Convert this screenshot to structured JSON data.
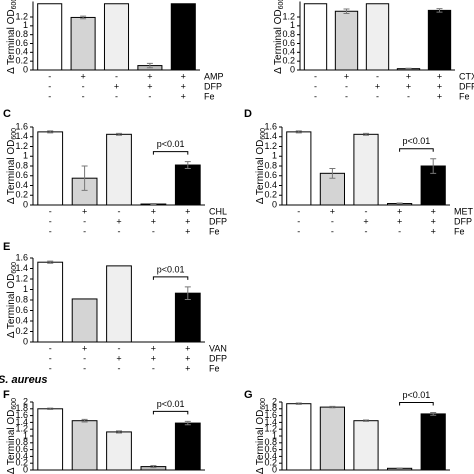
{
  "chart_data": [
    {
      "type": "bar",
      "ylabel": "Δ Terminal OD",
      "ylabel_sub": "600",
      "ylim": [
        0,
        1.55
      ],
      "yticks": [
        0,
        0.2,
        0.4,
        0.6,
        0.8,
        1,
        1.2
      ],
      "values": [
        1.5,
        1.19,
        1.5,
        0.1,
        1.5
      ],
      "errors": [
        0,
        0.03,
        0,
        0.05,
        0
      ],
      "colors": [
        "#ffffff",
        "#d4d4d4",
        "#efefef",
        "#bdbdbd",
        "#000000"
      ],
      "conditions": [
        {
          "name": "AMP",
          "signs": [
            "-",
            "+",
            "-",
            "+",
            "+"
          ]
        },
        {
          "name": "DFP",
          "signs": [
            "-",
            "-",
            "+",
            "+",
            "+"
          ]
        },
        {
          "name": "Fe",
          "signs": [
            "-",
            "-",
            "-",
            "-",
            "+"
          ]
        }
      ]
    },
    {
      "type": "bar",
      "ylabel": "Δ Terminal OD",
      "ylabel_sub": "600",
      "ylim": [
        0,
        1.55
      ],
      "yticks": [
        0,
        0.2,
        0.4,
        0.6,
        0.8,
        1,
        1.2
      ],
      "values": [
        1.5,
        1.33,
        1.5,
        0.03,
        1.35
      ],
      "errors": [
        0,
        0.05,
        0,
        0.01,
        0.04
      ],
      "colors": [
        "#ffffff",
        "#d4d4d4",
        "#efefef",
        "#bdbdbd",
        "#000000"
      ],
      "conditions": [
        {
          "name": "CTX",
          "signs": [
            "-",
            "+",
            "-",
            "+",
            "+"
          ]
        },
        {
          "name": "DFP",
          "signs": [
            "-",
            "-",
            "+",
            "+",
            "+"
          ]
        },
        {
          "name": "Fe",
          "signs": [
            "-",
            "-",
            "-",
            "-",
            "+"
          ]
        }
      ]
    },
    {
      "type": "bar",
      "panel": "C",
      "ylabel": "Δ Terminal OD",
      "ylabel_sub": "600",
      "ylim": [
        0,
        1.6
      ],
      "yticks": [
        0,
        0.2,
        0.4,
        0.6,
        0.8,
        1,
        1.2,
        1.4,
        1.6
      ],
      "values": [
        1.5,
        0.55,
        1.45,
        0.02,
        0.82
      ],
      "errors": [
        0.02,
        0.25,
        0.02,
        0.01,
        0.07
      ],
      "colors": [
        "#ffffff",
        "#d4d4d4",
        "#efefef",
        "#bdbdbd",
        "#000000"
      ],
      "annotation": "p<0.01",
      "conditions": [
        {
          "name": "CHL",
          "signs": [
            "-",
            "+",
            "-",
            "+",
            "+"
          ]
        },
        {
          "name": "DFP",
          "signs": [
            "-",
            "-",
            "+",
            "+",
            "+"
          ]
        },
        {
          "name": "Fe",
          "signs": [
            "-",
            "-",
            "-",
            "-",
            "+"
          ]
        }
      ]
    },
    {
      "type": "bar",
      "panel": "D",
      "ylabel": "Δ Terminal OD",
      "ylabel_sub": "600",
      "ylim": [
        0,
        1.6
      ],
      "yticks": [
        0,
        0.2,
        0.4,
        0.6,
        0.8,
        1,
        1.2,
        1.4,
        1.6
      ],
      "values": [
        1.5,
        0.65,
        1.45,
        0.03,
        0.8
      ],
      "errors": [
        0.02,
        0.1,
        0.02,
        0.01,
        0.15
      ],
      "colors": [
        "#ffffff",
        "#d4d4d4",
        "#efefef",
        "#bdbdbd",
        "#000000"
      ],
      "annotation": "p<0.01",
      "conditions": [
        {
          "name": "MET",
          "signs": [
            "-",
            "+",
            "-",
            "+",
            "+"
          ]
        },
        {
          "name": "DFP",
          "signs": [
            "-",
            "-",
            "+",
            "+",
            "+"
          ]
        },
        {
          "name": "Fe",
          "signs": [
            "-",
            "-",
            "-",
            "-",
            "+"
          ]
        }
      ]
    },
    {
      "type": "bar",
      "panel": "E",
      "ylabel": "Δ Terminal OD",
      "ylabel_sub": "600",
      "ylim": [
        0,
        1.6
      ],
      "yticks": [
        0,
        0.2,
        0.4,
        0.6,
        0.8,
        1,
        1.2,
        1.4,
        1.6
      ],
      "values": [
        1.52,
        0.82,
        1.45,
        0,
        0.93
      ],
      "errors": [
        0.02,
        0,
        0,
        0,
        0.12
      ],
      "colors": [
        "#ffffff",
        "#d4d4d4",
        "#efefef",
        "#bdbdbd",
        "#000000"
      ],
      "annotation": "p<0.01",
      "conditions": [
        {
          "name": "VAN",
          "signs": [
            "-",
            "+",
            "-",
            "+",
            "+"
          ]
        },
        {
          "name": "DFP",
          "signs": [
            "-",
            "-",
            "+",
            "+",
            "+"
          ]
        },
        {
          "name": "Fe",
          "signs": [
            "-",
            "-",
            "-",
            "-",
            "+"
          ]
        }
      ]
    },
    {
      "type": "bar",
      "panel": "F",
      "section": "S. aureus",
      "ylabel": "Δ Terminal OD",
      "ylabel_sub": "600",
      "ylim": [
        0,
        2
      ],
      "yticks": [
        0,
        0.2,
        0.4,
        0.6,
        0.8,
        1,
        1.2,
        1.4,
        1.6,
        1.8,
        2
      ],
      "values": [
        1.8,
        1.45,
        1.12,
        0.1,
        1.38
      ],
      "errors": [
        0.02,
        0.04,
        0.03,
        0.03,
        0.05
      ],
      "colors": [
        "#ffffff",
        "#d4d4d4",
        "#efefef",
        "#bdbdbd",
        "#000000"
      ],
      "annotation": "p<0.01"
    },
    {
      "type": "bar",
      "panel": "G",
      "ylabel": "Δ Terminal OD",
      "ylabel_sub": "600",
      "ylim": [
        0,
        2
      ],
      "yticks": [
        0,
        0.2,
        0.4,
        0.6,
        0.8,
        1,
        1.2,
        1.4,
        1.6,
        1.8,
        2
      ],
      "values": [
        1.95,
        1.85,
        1.45,
        0.05,
        1.65
      ],
      "errors": [
        0.02,
        0.02,
        0.02,
        0.01,
        0.04
      ],
      "colors": [
        "#ffffff",
        "#d4d4d4",
        "#efefef",
        "#bdbdbd",
        "#000000"
      ],
      "annotation": "p<0.01"
    }
  ]
}
